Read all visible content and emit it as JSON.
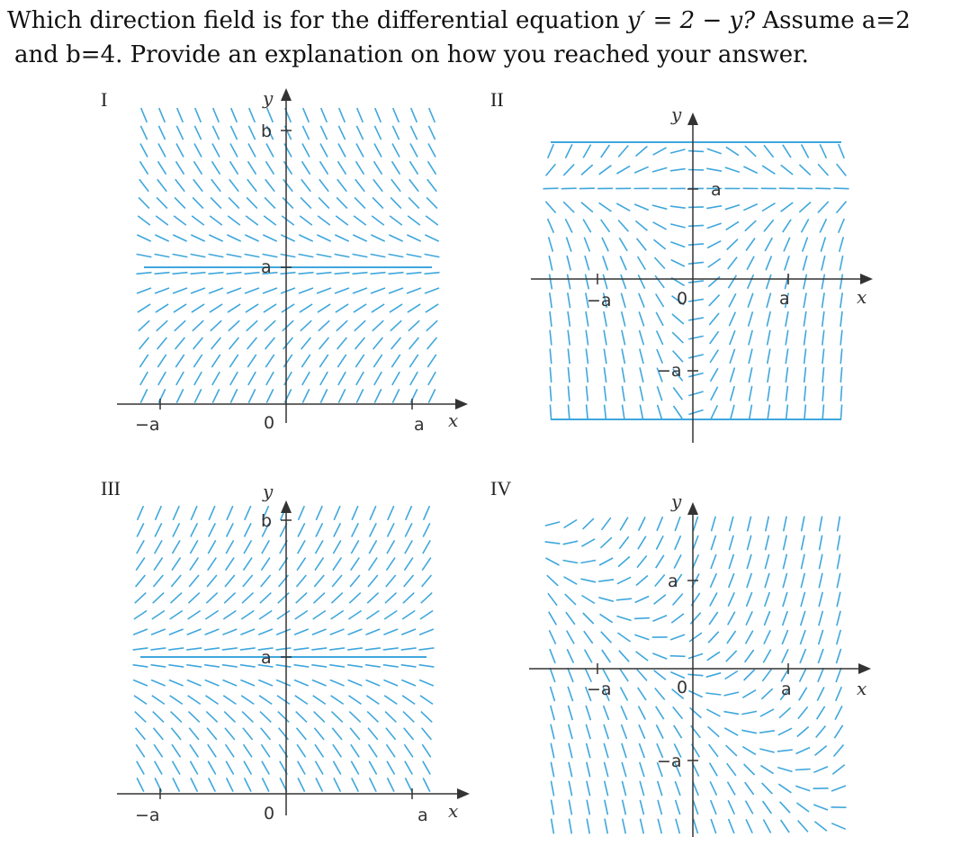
{
  "question": {
    "line1_pre": "Which direction field is for the differential equation ",
    "line1_eq": "y′ = 2 − y?",
    "line1_post": "  Assume a=2",
    "line2": "and b=4.  Provide an explanation on how you reached your answer."
  },
  "panels": [
    {
      "id": "I",
      "label": "I",
      "axis_x": "x",
      "axis_y": "y",
      "tick_neg_a": "−a",
      "tick_a": "a",
      "tick_b": "b",
      "origin": "0",
      "slope": "2 - y"
    },
    {
      "id": "II",
      "label": "II",
      "axis_x": "x",
      "axis_y": "y",
      "tick_neg_a": "−a",
      "tick_a": "a",
      "origin": "0",
      "slope": "x(2 - y)"
    },
    {
      "id": "III",
      "label": "III",
      "axis_x": "x",
      "axis_y": "y",
      "tick_neg_a": "−a",
      "tick_a": "a",
      "tick_b": "b",
      "origin": "0",
      "slope": "y - 2"
    },
    {
      "id": "IV",
      "label": "IV",
      "axis_x": "x",
      "axis_y": "y",
      "tick_neg_a": "−a",
      "tick_a": "a",
      "origin": "0",
      "slope": "x + y"
    }
  ],
  "colors": {
    "field": "#3fa7dc",
    "axis": "#333333"
  }
}
